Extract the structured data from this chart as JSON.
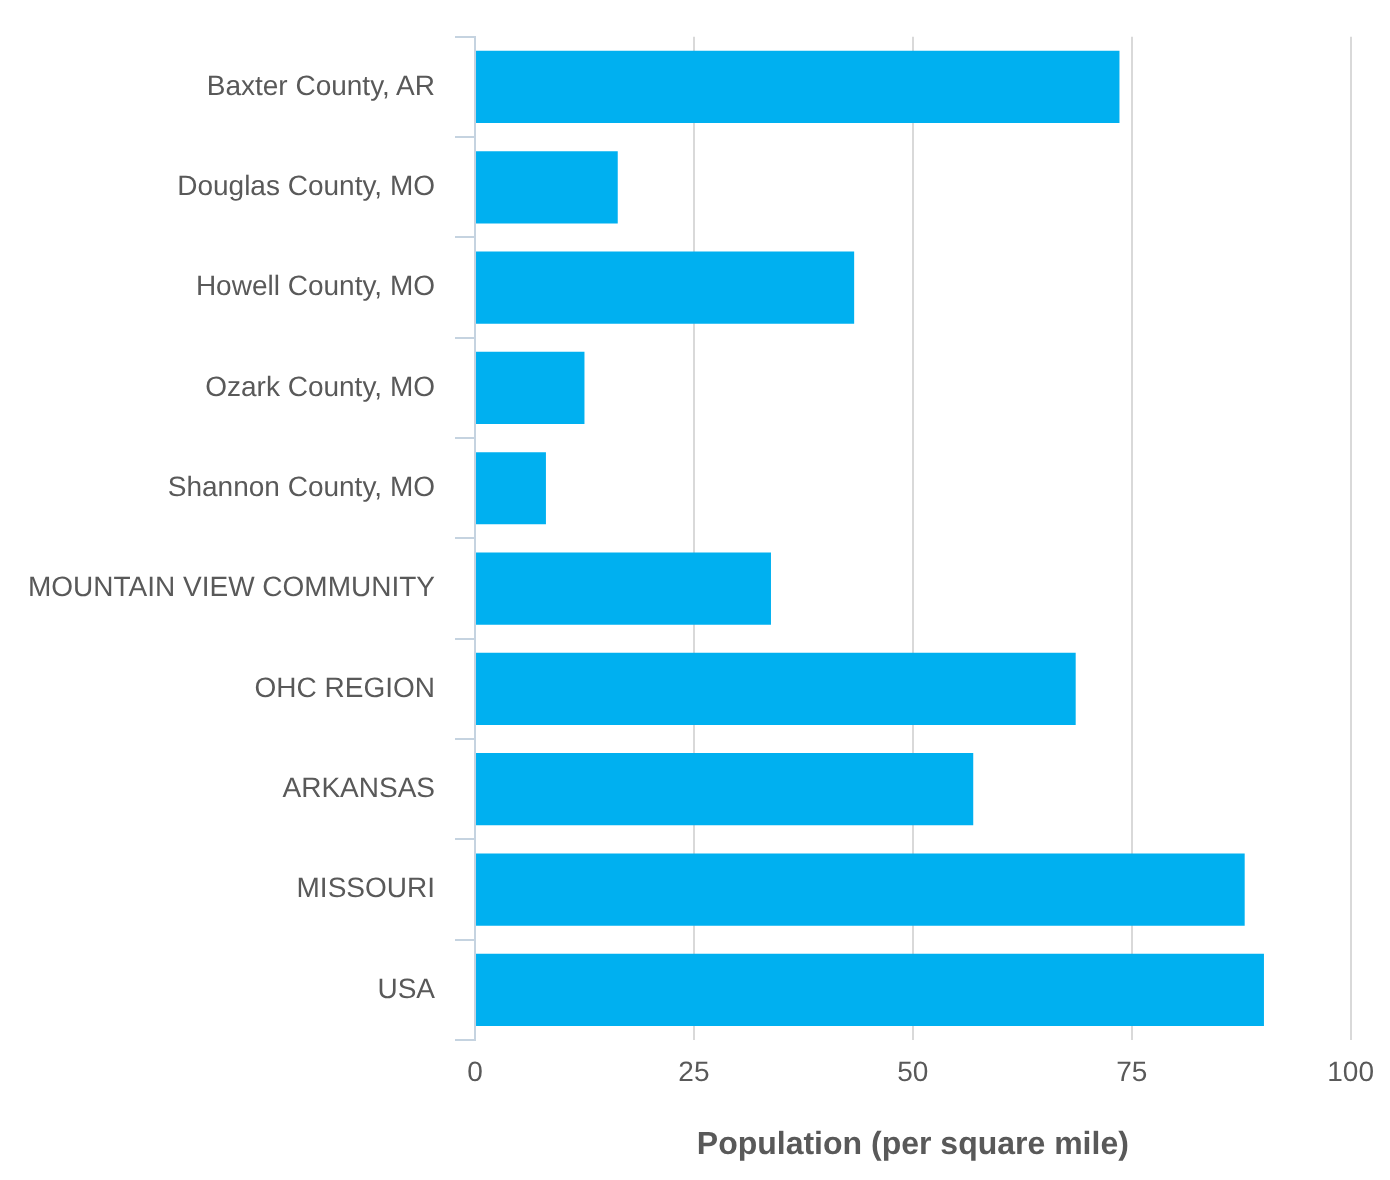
{
  "chart_data": {
    "type": "bar",
    "orientation": "horizontal",
    "xlabel": "Population (per square mile)",
    "categories": [
      "Baxter County, AR",
      "Douglas County, MO",
      "Howell County, MO",
      "Ozark County, MO",
      "Shannon County, MO",
      "MOUNTAIN VIEW COMMUNITY",
      "OHC REGION",
      "ARKANSAS",
      "MISSOURI",
      "USA"
    ],
    "values": [
      73.6,
      16.3,
      43.3,
      12.5,
      8.1,
      33.8,
      68.6,
      56.9,
      87.9,
      90.1
    ],
    "color": "#00b0f0",
    "xlim": [
      0,
      100
    ],
    "xticks": [
      0,
      25,
      50,
      75,
      100
    ],
    "grid": "x"
  }
}
